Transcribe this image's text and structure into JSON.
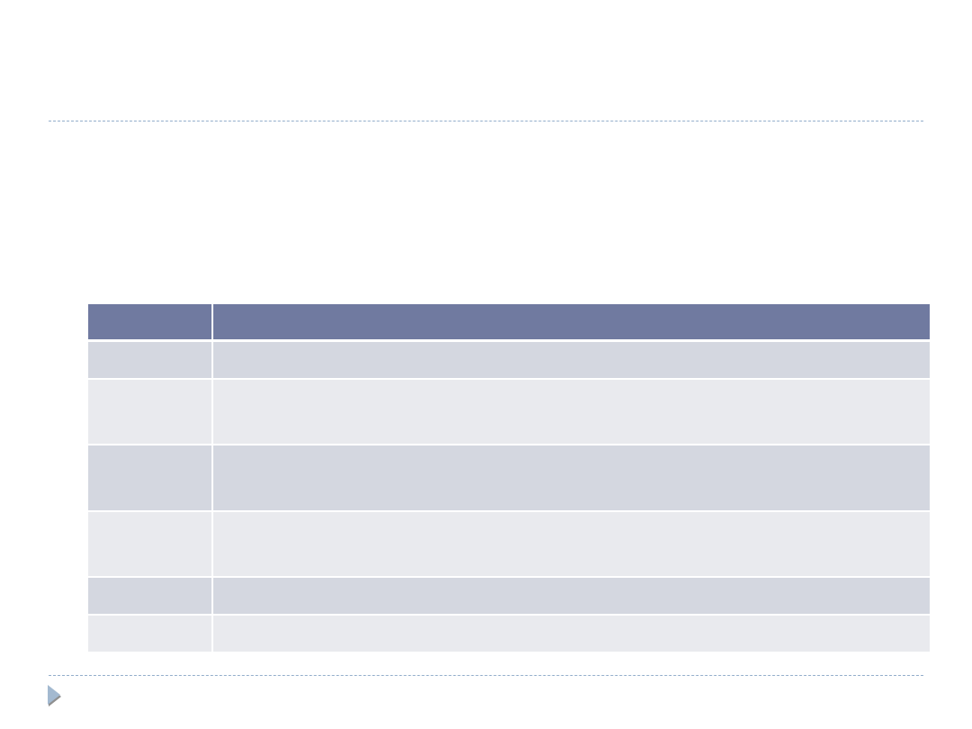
{
  "colors": {
    "header": "#707aa0",
    "row_dark": "#d4d7e0",
    "row_light": "#e9eaee",
    "rule": "#93aecb"
  },
  "footer": {
    "icon": "triangle-bullet-icon"
  }
}
